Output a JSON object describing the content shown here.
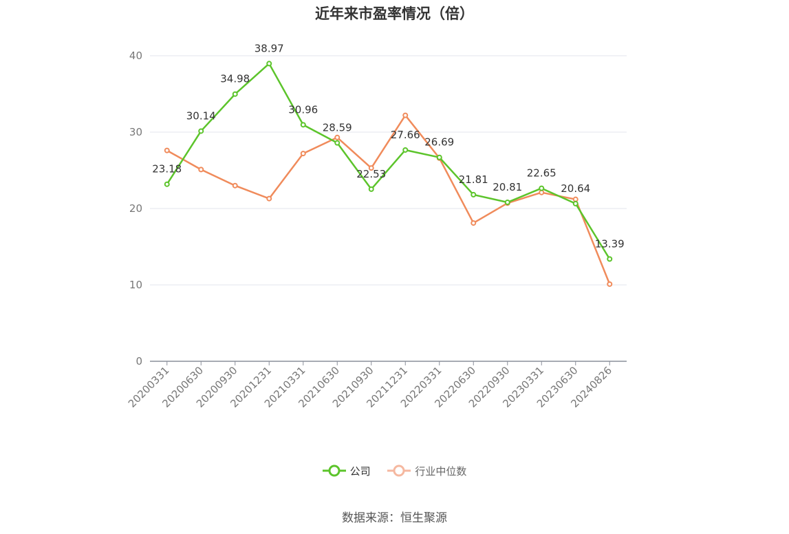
{
  "chart_data": {
    "type": "line",
    "title": "近年来市盈率情况（倍）",
    "x": [
      "20200331",
      "20200630",
      "20200930",
      "20201231",
      "20210331",
      "20210630",
      "20210930",
      "20211231",
      "20220331",
      "20220630",
      "20220930",
      "20230331",
      "20230630",
      "20240826"
    ],
    "series": [
      {
        "name": "公司",
        "color": "#5cc42b",
        "values": [
          23.18,
          30.14,
          34.98,
          38.97,
          30.96,
          28.59,
          22.53,
          27.66,
          26.69,
          21.81,
          20.81,
          22.65,
          20.64,
          13.39
        ],
        "data_labels": [
          "23.18",
          "30.14",
          "34.98",
          "38.97",
          "30.96",
          "28.59",
          "22.53",
          "27.66",
          "26.69",
          "21.81",
          "20.81",
          "22.65",
          "20.64",
          "13.39"
        ]
      },
      {
        "name": "行业中位数",
        "color": "#f08b5b",
        "values": [
          27.6,
          25.1,
          23.0,
          21.3,
          27.2,
          29.3,
          25.3,
          32.2,
          26.6,
          18.1,
          20.7,
          22.1,
          21.2,
          10.1
        ]
      }
    ],
    "yticks": [
      "0",
      "10",
      "20",
      "30",
      "40"
    ],
    "ylim": [
      0,
      40
    ],
    "grid": true,
    "legend_position": "bottom"
  },
  "legend": {
    "company_label": "公司",
    "industry_label": "行业中位数",
    "industry_icon_color": "#f5b8a0"
  },
  "source_text": "数据来源：恒生聚源"
}
